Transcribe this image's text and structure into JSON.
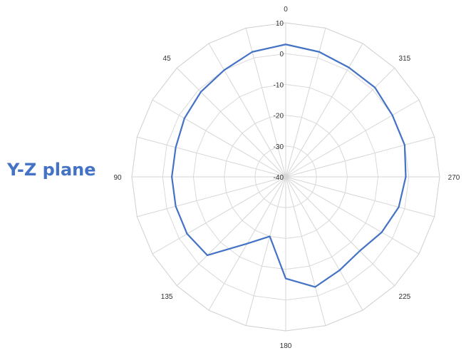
{
  "plane_label": "Y-Z plane",
  "chart_data": {
    "type": "radar",
    "title": "",
    "radial_ticks": [
      "10",
      "0",
      "-10",
      "-20",
      "-30",
      "-40"
    ],
    "radial_range": [
      -40,
      10
    ],
    "angle_labels": [
      "0",
      "45",
      "90",
      "135",
      "180",
      "225",
      "270",
      "315"
    ],
    "angle_direction": "counterclockwise",
    "grid": true,
    "series": [
      {
        "color": "#4472c4",
        "points": [
          {
            "angle": 0,
            "value": 3
          },
          {
            "angle": 15,
            "value": 2
          },
          {
            "angle": 30,
            "value": 0
          },
          {
            "angle": 45,
            "value": -1
          },
          {
            "angle": 60,
            "value": -2
          },
          {
            "angle": 75,
            "value": -3
          },
          {
            "angle": 90,
            "value": -3
          },
          {
            "angle": 105,
            "value": -3
          },
          {
            "angle": 120,
            "value": -3
          },
          {
            "angle": 135,
            "value": -4
          },
          {
            "angle": 150,
            "value": -15
          },
          {
            "angle": 165,
            "value": -20
          },
          {
            "angle": 180,
            "value": -7
          },
          {
            "angle": 195,
            "value": -3
          },
          {
            "angle": 210,
            "value": -5
          },
          {
            "angle": 225,
            "value": -6
          },
          {
            "angle": 240,
            "value": -4
          },
          {
            "angle": 255,
            "value": -2
          },
          {
            "angle": 270,
            "value": -1
          },
          {
            "angle": 285,
            "value": 0
          },
          {
            "angle": 300,
            "value": 0
          },
          {
            "angle": 315,
            "value": 1
          },
          {
            "angle": 330,
            "value": 1
          },
          {
            "angle": 345,
            "value": 2
          }
        ]
      }
    ]
  }
}
